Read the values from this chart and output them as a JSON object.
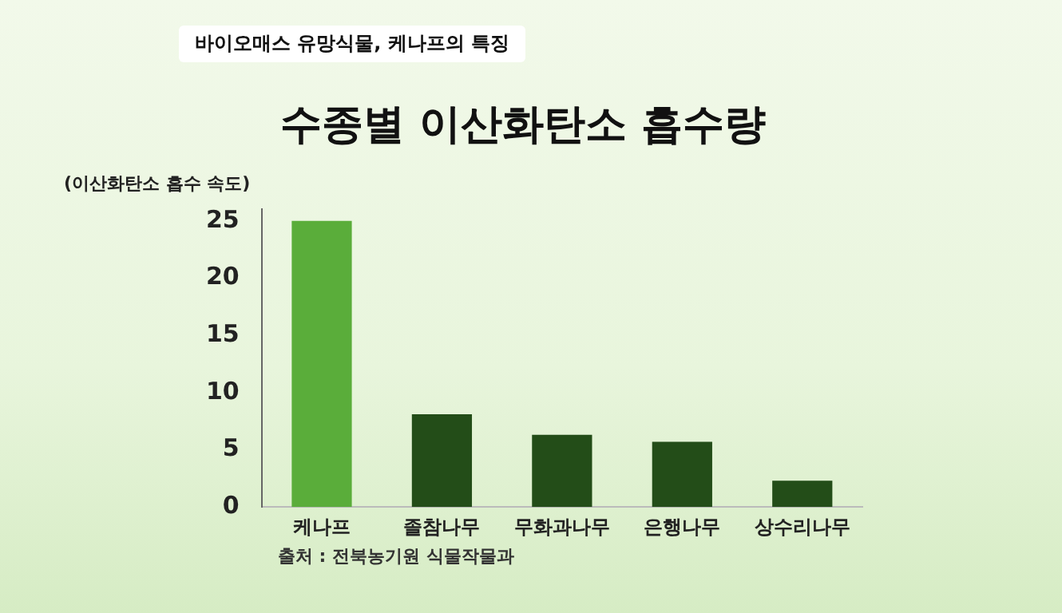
{
  "chart_data": {
    "type": "bar",
    "title": "수종별 이산화탄소 흡수량",
    "subtitle": "바이오매스 유망식물, 케나프의 특징",
    "ylabel": "(이산화탄소 흡수 속도)",
    "categories": [
      "케나프",
      "졸참나무",
      "무화과나무",
      "은행나무",
      "상수리나무"
    ],
    "values": [
      25,
      8.1,
      6.3,
      5.7,
      2.3
    ],
    "colors": [
      "#5aad3a",
      "#234d18",
      "#234d18",
      "#234d18",
      "#234d18"
    ],
    "ylim": [
      0,
      26
    ],
    "yticks": [
      0,
      5,
      10,
      15,
      20,
      25
    ],
    "grid": false,
    "legend": false,
    "annotations": [
      "출처 : 전북농기원 식물작물과"
    ]
  }
}
